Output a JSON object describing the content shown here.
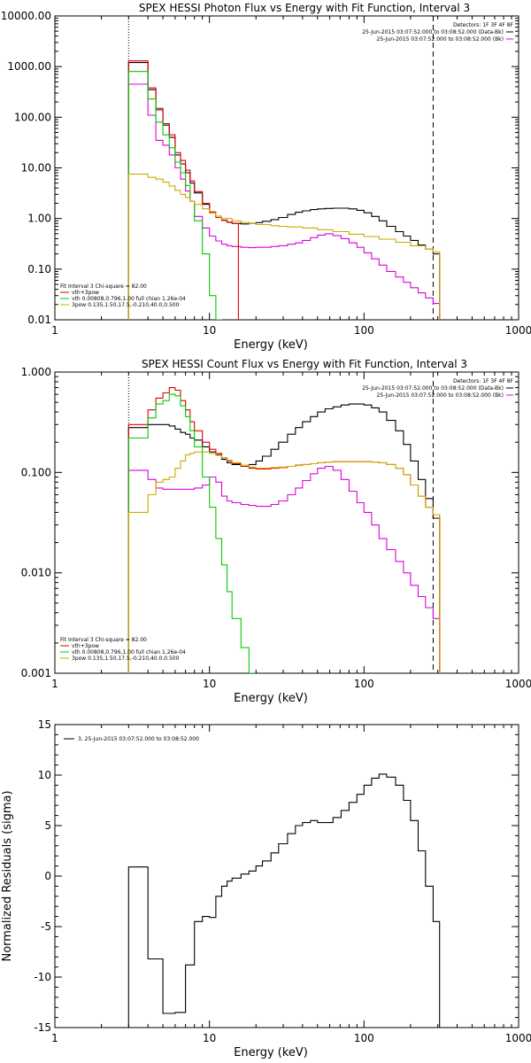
{
  "chart_data": [
    {
      "type": "line",
      "title": "SPEX HESSI Photon Flux vs Energy with Fit Function, Interval 3",
      "xlabel": "Energy (keV)",
      "ylabel": "",
      "xscale": "log",
      "yscale": "log",
      "xlim": [
        1,
        1000
      ],
      "ylim": [
        0.01,
        10000
      ],
      "xticks": [
        "1",
        "10",
        "100",
        "1000"
      ],
      "yticks": [
        "0.01",
        "0.10",
        "1.00",
        "10.00",
        "100.00",
        "1000.00",
        "10000.00"
      ],
      "grid": false,
      "vlines": [
        {
          "x": 3,
          "style": "dotted"
        },
        {
          "x": 280,
          "style": "dashed"
        }
      ],
      "legend_top_right": {
        "header": "Detectors: 1F 3F 4F 8F",
        "entries": [
          {
            "label": "25-Jun-2015 03:07:52.000 to 03:08:52.000 (Data-Bk)",
            "color": "#000000"
          },
          {
            "label": "25-Jun-2015 03:07:52.000 to 03:08:52.000 (Bk)",
            "color": "#dd00dd"
          }
        ]
      },
      "legend_bottom_left": {
        "header": "Fit Interval 3   Chi-square = 82.00",
        "entries": [
          {
            "label": "vth+3pow",
            "color": "#dd0000"
          },
          {
            "label": "vth 0.00808,0.796,1.00   full chian 1.26e-04",
            "color": "#00cc00"
          },
          {
            "label": "3pow 0.135,1.50,17.5,-0.210,40.0,0.500",
            "color": "#ccaa00"
          }
        ]
      },
      "series": [
        {
          "name": "25-Jun-2015 03:07:52.000 to 03:08:52.000 (Data-Bk)",
          "color": "#000000",
          "x": [
            3,
            3.5,
            4,
            4.5,
            5,
            5.5,
            6,
            6.5,
            7,
            7.5,
            8,
            9,
            10,
            11,
            12,
            13,
            14,
            16,
            18,
            20,
            22,
            25,
            28,
            32,
            36,
            40,
            45,
            50,
            56,
            63,
            71,
            80,
            90,
            100,
            112,
            125,
            140,
            160,
            180,
            200,
            224,
            250,
            280
          ],
          "y": [
            1200,
            1200,
            350,
            140,
            70,
            40,
            18,
            12,
            8,
            5,
            3.2,
            1.9,
            1.3,
            1.05,
            0.92,
            0.84,
            0.8,
            0.78,
            0.8,
            0.83,
            0.88,
            0.95,
            1.05,
            1.2,
            1.33,
            1.42,
            1.5,
            1.55,
            1.58,
            1.6,
            1.6,
            1.55,
            1.45,
            1.3,
            1.1,
            0.9,
            0.7,
            0.55,
            0.45,
            0.37,
            0.3,
            0.25,
            0.2
          ]
        },
        {
          "name": "25-Jun-2015 03:07:52.000 to 03:08:52.000 (Bk)",
          "color": "#dd00dd",
          "x": [
            3,
            3.5,
            4,
            4.5,
            5,
            5.5,
            6,
            6.5,
            7,
            7.5,
            8,
            9,
            10,
            11,
            12,
            13,
            14,
            16,
            18,
            20,
            22,
            25,
            28,
            32,
            36,
            40,
            45,
            50,
            56,
            63,
            71,
            80,
            90,
            100,
            112,
            125,
            140,
            160,
            180,
            200,
            224,
            250,
            280
          ],
          "y": [
            450,
            450,
            110,
            35,
            28,
            18,
            10,
            6,
            3.5,
            2.2,
            1.1,
            0.65,
            0.45,
            0.36,
            0.31,
            0.29,
            0.28,
            0.27,
            0.265,
            0.27,
            0.27,
            0.28,
            0.29,
            0.31,
            0.33,
            0.37,
            0.42,
            0.47,
            0.5,
            0.46,
            0.4,
            0.33,
            0.27,
            0.21,
            0.16,
            0.12,
            0.09,
            0.07,
            0.055,
            0.043,
            0.034,
            0.027,
            0.021
          ]
        },
        {
          "name": "vth+3pow",
          "color": "#dd0000",
          "x": [
            3,
            3.5,
            4,
            4.5,
            5,
            5.5,
            6,
            6.5,
            7,
            7.5,
            8,
            9,
            10,
            11,
            12,
            13,
            14
          ],
          "y": [
            1300,
            1300,
            380,
            150,
            75,
            45,
            20,
            14,
            9,
            5.5,
            3.4,
            2.0,
            1.35,
            1.05,
            0.92,
            0.85,
            0.8
          ]
        },
        {
          "name": "vth",
          "color": "#00cc00",
          "x": [
            3,
            3.5,
            4,
            4.5,
            5,
            5.5,
            6,
            6.5,
            7,
            7.5,
            8,
            9,
            10,
            11
          ],
          "y": [
            800,
            800,
            230,
            80,
            45,
            25,
            13,
            8,
            4.5,
            2.2,
            0.9,
            0.2,
            0.03,
            0.01
          ]
        },
        {
          "name": "3pow",
          "color": "#ccaa00",
          "x": [
            3,
            3.5,
            4,
            4.5,
            5,
            5.5,
            6,
            6.5,
            7,
            7.5,
            8,
            9,
            10,
            11,
            12,
            14,
            16,
            18,
            20,
            25,
            28,
            32,
            40,
            50,
            63,
            80,
            100,
            125,
            160,
            200,
            250,
            280
          ],
          "y": [
            7.5,
            7.5,
            6.5,
            6.0,
            5.2,
            4.4,
            3.6,
            3.0,
            2.6,
            2.2,
            1.9,
            1.55,
            1.3,
            1.12,
            1.0,
            0.9,
            0.84,
            0.8,
            0.76,
            0.72,
            0.7,
            0.68,
            0.65,
            0.6,
            0.55,
            0.49,
            0.44,
            0.39,
            0.34,
            0.29,
            0.25,
            0.22
          ]
        }
      ]
    },
    {
      "type": "line",
      "title": "SPEX HESSI Count Flux vs Energy with Fit Function, Interval 3",
      "xlabel": "Energy (keV)",
      "ylabel": "",
      "xscale": "log",
      "yscale": "log",
      "xlim": [
        1,
        1000
      ],
      "ylim": [
        0.001,
        1
      ],
      "xticks": [
        "1",
        "10",
        "100",
        "1000"
      ],
      "yticks": [
        "0.001",
        "0.010",
        "0.100",
        "1.000"
      ],
      "grid": false,
      "vlines": [
        {
          "x": 3,
          "style": "dotted"
        },
        {
          "x": 280,
          "style": "dashed"
        }
      ],
      "legend_top_right": {
        "header": "Detectors: 1F 3F 4F 8F",
        "entries": [
          {
            "label": "25-Jun-2015 03:07:52.000 to 03:08:52.000 (Data-Bk)",
            "color": "#000000"
          },
          {
            "label": "25-Jun-2015 03:07:52.000 to 03:08:52.000 (Bk)",
            "color": "#dd00dd"
          }
        ]
      },
      "legend_bottom_left": {
        "header": "Fit Interval 3   Chi-square = 82.00",
        "entries": [
          {
            "label": "vth+3pow",
            "color": "#dd0000"
          },
          {
            "label": "vth 0.00808,0.796,1.00   full chian 1.26e-04",
            "color": "#00cc00"
          },
          {
            "label": "3pow 0.135,1.50,17.5,-0.210,40.0,0.500",
            "color": "#ccaa00"
          }
        ]
      },
      "series": [
        {
          "name": "25-Jun-2015 03:07:52.000 to 03:08:52.000 (Data-Bk)",
          "color": "#000000",
          "x": [
            3,
            3.5,
            4,
            4.5,
            5,
            5.5,
            6,
            6.5,
            7,
            7.5,
            8,
            9,
            10,
            11,
            12,
            13,
            14,
            16,
            18,
            20,
            22,
            25,
            28,
            32,
            36,
            40,
            45,
            50,
            56,
            63,
            71,
            80,
            90,
            100,
            112,
            125,
            140,
            160,
            180,
            200,
            224,
            250,
            280
          ],
          "y": [
            0.28,
            0.28,
            0.3,
            0.3,
            0.3,
            0.29,
            0.27,
            0.25,
            0.24,
            0.22,
            0.21,
            0.18,
            0.16,
            0.15,
            0.135,
            0.125,
            0.12,
            0.115,
            0.12,
            0.13,
            0.145,
            0.17,
            0.2,
            0.24,
            0.28,
            0.32,
            0.36,
            0.4,
            0.43,
            0.45,
            0.47,
            0.48,
            0.48,
            0.47,
            0.44,
            0.4,
            0.33,
            0.26,
            0.19,
            0.13,
            0.085,
            0.055,
            0.035
          ]
        },
        {
          "name": "25-Jun-2015 03:07:52.000 to 03:08:52.000 (Bk)",
          "color": "#dd00dd",
          "x": [
            3,
            3.5,
            4,
            4.5,
            5,
            5.5,
            6,
            6.5,
            7,
            7.5,
            8,
            9,
            10,
            11,
            12,
            13,
            14,
            16,
            18,
            20,
            22,
            25,
            28,
            32,
            36,
            40,
            45,
            50,
            56,
            63,
            71,
            80,
            90,
            100,
            112,
            125,
            140,
            160,
            180,
            200,
            224,
            250,
            280
          ],
          "y": [
            0.105,
            0.105,
            0.085,
            0.07,
            0.068,
            0.068,
            0.068,
            0.068,
            0.068,
            0.068,
            0.07,
            0.075,
            0.09,
            0.08,
            0.058,
            0.052,
            0.05,
            0.048,
            0.047,
            0.046,
            0.046,
            0.048,
            0.052,
            0.06,
            0.07,
            0.083,
            0.097,
            0.11,
            0.115,
            0.105,
            0.085,
            0.065,
            0.05,
            0.04,
            0.03,
            0.022,
            0.017,
            0.013,
            0.01,
            0.0075,
            0.0058,
            0.0045,
            0.0035
          ]
        },
        {
          "name": "vth+3pow",
          "color": "#dd0000",
          "x": [
            3,
            3.5,
            4,
            4.5,
            5,
            5.5,
            6,
            6.5,
            7,
            7.5,
            8,
            9,
            10,
            11,
            12,
            13,
            14,
            16,
            18,
            20,
            22,
            25,
            28,
            32,
            36,
            40,
            45,
            50,
            56,
            63,
            71,
            80,
            90,
            100,
            112,
            125,
            140,
            160,
            180,
            200,
            224,
            250,
            280
          ],
          "y": [
            0.3,
            0.3,
            0.42,
            0.55,
            0.62,
            0.7,
            0.66,
            0.52,
            0.42,
            0.32,
            0.26,
            0.2,
            0.17,
            0.155,
            0.14,
            0.13,
            0.122,
            0.115,
            0.11,
            0.108,
            0.108,
            0.11,
            0.112,
            0.115,
            0.118,
            0.12,
            0.122,
            0.125,
            0.127,
            0.128,
            0.128,
            0.128,
            0.128,
            0.128,
            0.127,
            0.125,
            0.12,
            0.11,
            0.095,
            0.075,
            0.058,
            0.045,
            0.038
          ]
        },
        {
          "name": "vth",
          "color": "#00cc00",
          "x": [
            3,
            3.5,
            4,
            4.5,
            5,
            5.5,
            6,
            6.5,
            7,
            7.5,
            8,
            9,
            10,
            11,
            12,
            13,
            14,
            16,
            18
          ],
          "y": [
            0.22,
            0.22,
            0.35,
            0.48,
            0.52,
            0.6,
            0.58,
            0.46,
            0.36,
            0.26,
            0.18,
            0.09,
            0.045,
            0.022,
            0.012,
            0.0065,
            0.0035,
            0.0018,
            0.001
          ]
        },
        {
          "name": "3pow",
          "color": "#ccaa00",
          "x": [
            3,
            3.5,
            4,
            4.5,
            5,
            5.5,
            6,
            6.5,
            7,
            7.5,
            8,
            9,
            10,
            11,
            12,
            13,
            14,
            16,
            18,
            20,
            22,
            25,
            28,
            32,
            36,
            40,
            45,
            50,
            56,
            63,
            71,
            80,
            90,
            100,
            112,
            125,
            140,
            160,
            180,
            200,
            224,
            250,
            280
          ],
          "y": [
            0.04,
            0.04,
            0.06,
            0.08,
            0.085,
            0.09,
            0.11,
            0.13,
            0.15,
            0.155,
            0.16,
            0.16,
            0.155,
            0.148,
            0.14,
            0.132,
            0.125,
            0.118,
            0.113,
            0.11,
            0.11,
            0.112,
            0.113,
            0.115,
            0.117,
            0.12,
            0.122,
            0.125,
            0.127,
            0.128,
            0.128,
            0.128,
            0.128,
            0.128,
            0.127,
            0.125,
            0.12,
            0.11,
            0.095,
            0.075,
            0.058,
            0.045,
            0.038
          ]
        }
      ]
    },
    {
      "type": "line",
      "title": "",
      "xlabel": "Energy (keV)",
      "ylabel": "Normalized Residuals (sigma)",
      "xscale": "log",
      "yscale": "linear",
      "xlim": [
        1,
        1000
      ],
      "ylim": [
        -15,
        15
      ],
      "xticks": [
        "1",
        "10",
        "100",
        "1000"
      ],
      "yticks": [
        "-15",
        "-10",
        "-5",
        "0",
        "5",
        "10",
        "15"
      ],
      "grid": false,
      "legend_top_left": {
        "entries": [
          {
            "label": "3, 25-Jun-2015 03:07:52.000 to 03:08:52.000",
            "color": "#000000"
          }
        ]
      },
      "series": [
        {
          "name": "3, 25-Jun-2015 03:07:52.000 to 03:08:52.000",
          "color": "#000000",
          "x": [
            3,
            3.5,
            4,
            4.5,
            5,
            5.5,
            6,
            6.5,
            7,
            7.5,
            8,
            9,
            10,
            11,
            12,
            13,
            14,
            16,
            18,
            20,
            22,
            25,
            28,
            32,
            36,
            40,
            45,
            50,
            56,
            63,
            71,
            80,
            90,
            100,
            112,
            125,
            140,
            160,
            180,
            200,
            224,
            250,
            280
          ],
          "y": [
            0.9,
            0.9,
            -8.2,
            -8.2,
            -13.6,
            -13.6,
            -13.5,
            -13.5,
            -8.8,
            -8.8,
            -4.5,
            -4.0,
            -4.1,
            -2.0,
            -1.0,
            -0.5,
            -0.2,
            0.2,
            0.5,
            1.0,
            1.5,
            2.3,
            3.2,
            4.2,
            5.0,
            5.3,
            5.5,
            5.3,
            5.3,
            5.8,
            6.5,
            7.3,
            8.1,
            9.0,
            9.7,
            10.1,
            9.8,
            9.0,
            7.5,
            5.5,
            2.5,
            -1.0,
            -4.5
          ]
        }
      ]
    }
  ]
}
